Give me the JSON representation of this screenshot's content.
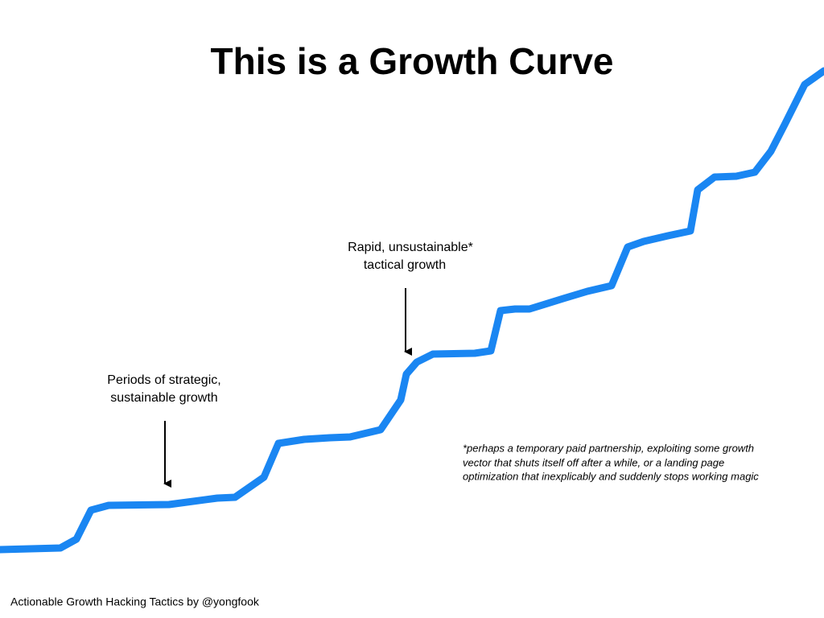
{
  "slide": {
    "title": "This is a Growth Curve",
    "annotations": [
      {
        "lines": [
          "Periods of strategic,",
          "sustainable growth"
        ]
      },
      {
        "lines": [
          "Rapid, unsustainable*",
          "tactical growth"
        ]
      }
    ],
    "footnote": [
      "*perhaps a temporary paid partnership, exploiting some growth",
      "vector that shuts itself off after a while, or a landing page",
      "optimization that inexplicably and suddenly stops working magic"
    ],
    "footer": "Actionable Growth Hacking Tactics by @yongfook"
  }
}
